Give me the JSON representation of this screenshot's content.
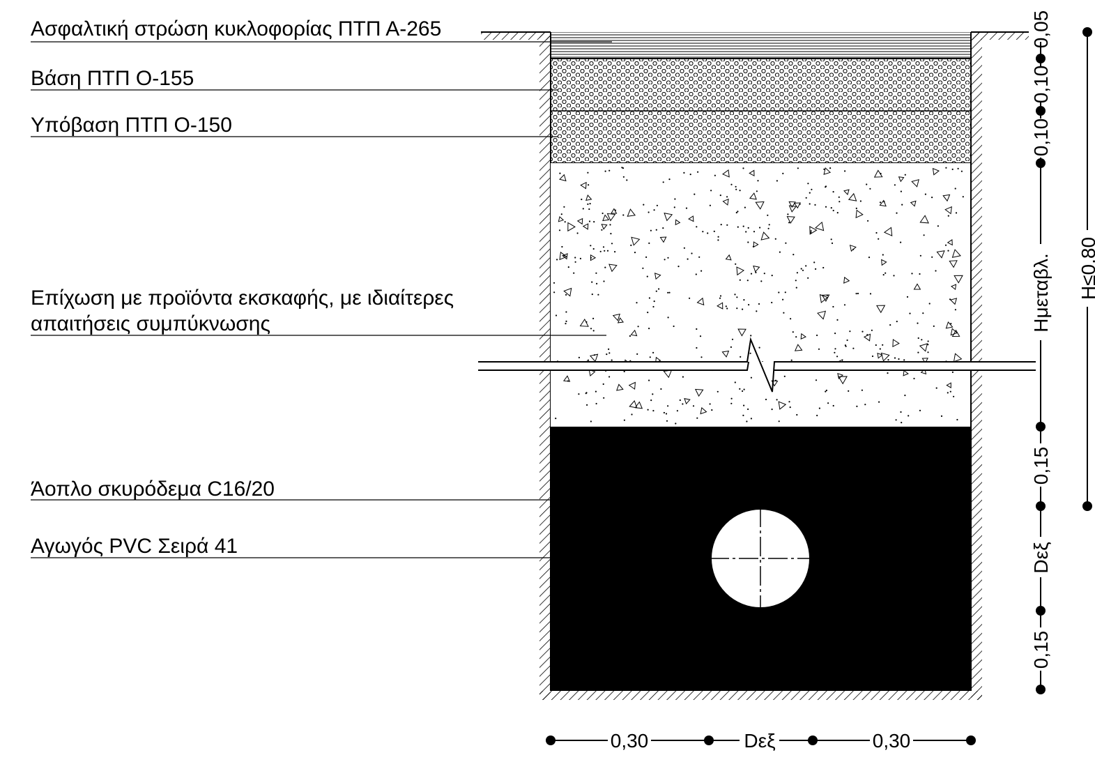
{
  "labels": {
    "asphalt": "Ασφαλτική στρώση κυκλοφορίας ΠΤΠ Α-265",
    "base": "Βάση ΠΤΠ Ο-155",
    "subbase": "Υπόβαση ΠΤΠ Ο-150",
    "backfill_line1": "Επίχωση με προϊόντα εκσκαφής, με ιδιαίτερες",
    "backfill_line2": "απαιτήσεις συμπύκνωσης",
    "concrete": "Άοπλο σκυρόδεμα C16/20",
    "pipe": "Αγωγός PVC Σειρά 41"
  },
  "dimensions": {
    "bottom_left": "0,30",
    "bottom_mid": "Dεξ",
    "bottom_right": "0,30",
    "right_asphalt": "0,05",
    "right_base": "0,10",
    "right_subbase": "0,10",
    "right_variable": "Hμεταβλ.",
    "right_concrete_top": "0,15",
    "right_pipe": "Dεξ",
    "right_concrete_bottom": "0,15",
    "far_right_total": "H≤0,80"
  },
  "colors": {
    "line": "#000000",
    "background": "#ffffff",
    "concrete": "#000000"
  }
}
